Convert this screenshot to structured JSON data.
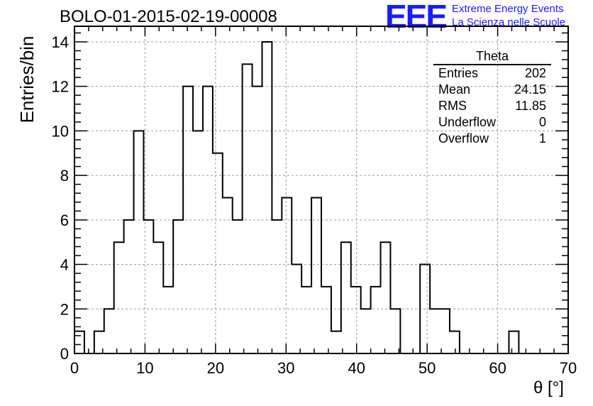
{
  "title": "BOLO-01-2015-02-19-00008",
  "logo": {
    "mark": "EEE",
    "line1": "Extreme Energy Events",
    "line2": "La Scienza nelle Scuole",
    "color": "#1a1aff"
  },
  "stats": {
    "name": "Theta",
    "rows": [
      {
        "label": "Entries",
        "value": "202"
      },
      {
        "label": "Mean",
        "value": "24.15"
      },
      {
        "label": "RMS",
        "value": "11.85"
      },
      {
        "label": "Underflow",
        "value": "0"
      },
      {
        "label": "Overflow",
        "value": "1"
      }
    ]
  },
  "chart_data": {
    "type": "bar",
    "subtype": "step-histogram",
    "xlabel": "θ [°]",
    "ylabel": "Entries/bin",
    "xlim": [
      0,
      70
    ],
    "ylim": [
      0,
      14.7
    ],
    "bin_width": 1.4,
    "grid": true,
    "xticks": [
      0,
      10,
      20,
      30,
      40,
      50,
      60,
      70
    ],
    "yticks": [
      0,
      2,
      4,
      6,
      8,
      10,
      12,
      14
    ],
    "values": [
      1,
      0,
      1,
      2,
      5,
      6,
      10,
      6,
      5,
      3,
      6,
      12,
      10,
      12,
      9,
      7,
      6,
      13,
      12,
      14,
      6,
      7,
      4,
      3,
      7,
      3,
      1,
      5,
      3,
      2,
      3,
      5,
      2,
      0,
      0,
      4,
      2,
      2,
      1,
      0,
      0,
      0,
      0,
      0,
      1,
      0,
      0,
      0,
      0,
      0
    ],
    "line_color": "#000000"
  }
}
